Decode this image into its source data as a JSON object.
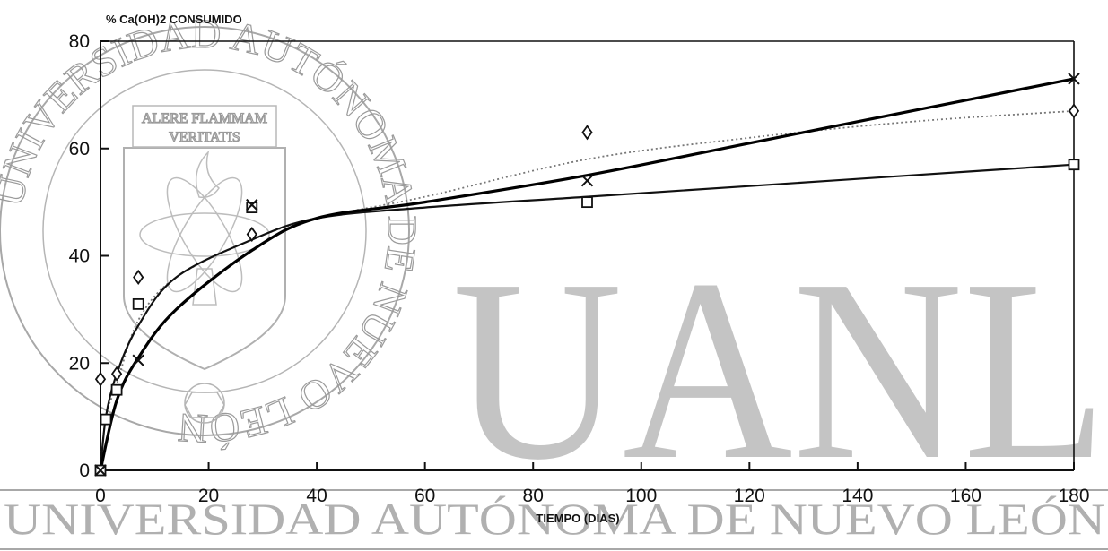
{
  "watermark": {
    "seal_ring_text": "UNIVERSIDAD AUTÓNOMA DE NUEVO LEÓN",
    "seal_motto_1": "ALERE FLAMMAM",
    "seal_motto_2": "VERITATIS",
    "big_letters": "UANL",
    "bottom_banner": "UNIVERSIDAD AUTÓNOMA DE NUEVO LEÓN"
  },
  "chart_data": {
    "type": "scatter",
    "title": "",
    "ylabel": "% Ca(OH)2 CONSUMIDO",
    "xlabel": "TIEMPO  (DIAS)",
    "xlim": [
      0,
      180
    ],
    "ylim": [
      0,
      80
    ],
    "xticks": [
      0,
      20,
      40,
      60,
      80,
      100,
      120,
      140,
      160,
      180
    ],
    "yticks": [
      0,
      20,
      40,
      60,
      80
    ],
    "grid": false,
    "series": [
      {
        "marker": "diamond",
        "line": "dotted",
        "color": "#333333",
        "points": [
          [
            0,
            17
          ],
          [
            3,
            18
          ],
          [
            7,
            36
          ],
          [
            28,
            44
          ],
          [
            90,
            63
          ],
          [
            180,
            67
          ]
        ],
        "curve": [
          [
            0,
            0
          ],
          [
            1,
            10
          ],
          [
            3,
            16
          ],
          [
            7,
            28
          ],
          [
            14,
            36
          ],
          [
            28,
            43
          ],
          [
            40,
            47
          ],
          [
            60,
            51
          ],
          [
            90,
            58
          ],
          [
            120,
            62
          ],
          [
            150,
            65
          ],
          [
            180,
            67
          ]
        ]
      },
      {
        "marker": "square",
        "line": "solid",
        "color": "#111111",
        "points": [
          [
            0,
            0
          ],
          [
            1,
            9.5
          ],
          [
            3,
            15
          ],
          [
            7,
            31
          ],
          [
            28,
            49
          ],
          [
            90,
            50
          ],
          [
            180,
            57
          ]
        ],
        "curve": [
          [
            0,
            0
          ],
          [
            1,
            10
          ],
          [
            3,
            18
          ],
          [
            7,
            27
          ],
          [
            14,
            36
          ],
          [
            28,
            43
          ],
          [
            40,
            47
          ],
          [
            60,
            49
          ],
          [
            90,
            51
          ],
          [
            120,
            53
          ],
          [
            150,
            55
          ],
          [
            180,
            57
          ]
        ]
      },
      {
        "marker": "x",
        "line": "solid-thick",
        "color": "#000000",
        "points": [
          [
            0,
            0
          ],
          [
            7,
            20.5
          ],
          [
            28,
            49.5
          ],
          [
            90,
            54
          ],
          [
            180,
            73
          ]
        ],
        "curve": [
          [
            0,
            0
          ],
          [
            3,
            13
          ],
          [
            7,
            21
          ],
          [
            14,
            30
          ],
          [
            28,
            41
          ],
          [
            40,
            47
          ],
          [
            60,
            50
          ],
          [
            90,
            55
          ],
          [
            120,
            61
          ],
          [
            150,
            67
          ],
          [
            180,
            73
          ]
        ]
      }
    ]
  }
}
